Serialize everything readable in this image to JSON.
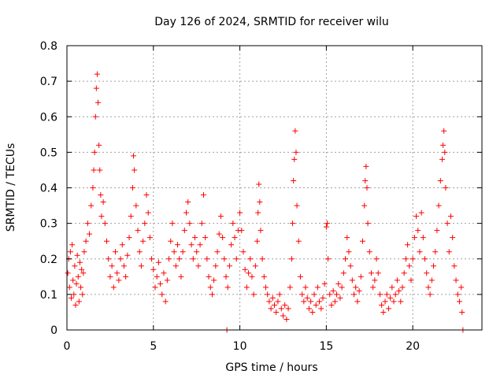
{
  "chart_data": {
    "type": "scatter",
    "title": "Day 126 of 2024, SRMTID for receiver wilu",
    "xlabel": "GPS time / hours",
    "ylabel": "SRMTID / TECUs",
    "xlim": [
      0,
      24
    ],
    "ylim": [
      0,
      0.8
    ],
    "xticks": [
      0,
      5,
      10,
      15,
      20
    ],
    "yticks": [
      0,
      0.1,
      0.2,
      0.3,
      0.4,
      0.5,
      0.6,
      0.7,
      0.8
    ],
    "xtick_labels": [
      "0",
      "5",
      "10",
      "15",
      "20"
    ],
    "ytick_labels": [
      "0",
      "0.1",
      "0.2",
      "0.3",
      "0.4",
      "0.5",
      "0.6",
      "0.7",
      "0.8"
    ],
    "grid": true,
    "marker": "+",
    "color": "#ff0000",
    "series": [
      {
        "name": "SRMTID",
        "points": [
          [
            0.05,
            0.16
          ],
          [
            0.1,
            0.2
          ],
          [
            0.15,
            0.12
          ],
          [
            0.2,
            0.22
          ],
          [
            0.25,
            0.09
          ],
          [
            0.3,
            0.24
          ],
          [
            0.35,
            0.14
          ],
          [
            0.4,
            0.1
          ],
          [
            0.45,
            0.18
          ],
          [
            0.5,
            0.07
          ],
          [
            0.55,
            0.13
          ],
          [
            0.6,
            0.21
          ],
          [
            0.65,
            0.15
          ],
          [
            0.7,
            0.08
          ],
          [
            0.75,
            0.19
          ],
          [
            0.8,
            0.12
          ],
          [
            0.85,
            0.17
          ],
          [
            0.9,
            0.1
          ],
          [
            0.95,
            0.16
          ],
          [
            1.0,
            0.22
          ],
          [
            1.1,
            0.25
          ],
          [
            1.2,
            0.3
          ],
          [
            1.3,
            0.27
          ],
          [
            1.4,
            0.35
          ],
          [
            1.5,
            0.4
          ],
          [
            1.55,
            0.45
          ],
          [
            1.6,
            0.5
          ],
          [
            1.65,
            0.6
          ],
          [
            1.7,
            0.68
          ],
          [
            1.75,
            0.72
          ],
          [
            1.8,
            0.64
          ],
          [
            1.85,
            0.52
          ],
          [
            1.9,
            0.45
          ],
          [
            1.95,
            0.38
          ],
          [
            2.0,
            0.32
          ],
          [
            2.1,
            0.36
          ],
          [
            2.2,
            0.3
          ],
          [
            2.3,
            0.25
          ],
          [
            2.4,
            0.2
          ],
          [
            2.5,
            0.15
          ],
          [
            2.6,
            0.18
          ],
          [
            2.7,
            0.12
          ],
          [
            2.8,
            0.22
          ],
          [
            2.9,
            0.16
          ],
          [
            3.0,
            0.14
          ],
          [
            3.1,
            0.2
          ],
          [
            3.2,
            0.24
          ],
          [
            3.3,
            0.18
          ],
          [
            3.4,
            0.15
          ],
          [
            3.5,
            0.21
          ],
          [
            3.6,
            0.26
          ],
          [
            3.7,
            0.32
          ],
          [
            3.8,
            0.4
          ],
          [
            3.85,
            0.49
          ],
          [
            3.9,
            0.45
          ],
          [
            4.0,
            0.35
          ],
          [
            4.1,
            0.28
          ],
          [
            4.2,
            0.22
          ],
          [
            4.3,
            0.18
          ],
          [
            4.4,
            0.25
          ],
          [
            4.5,
            0.3
          ],
          [
            4.6,
            0.38
          ],
          [
            4.7,
            0.33
          ],
          [
            4.8,
            0.26
          ],
          [
            4.9,
            0.2
          ],
          [
            5.0,
            0.17
          ],
          [
            5.1,
            0.12
          ],
          [
            5.2,
            0.15
          ],
          [
            5.3,
            0.19
          ],
          [
            5.4,
            0.13
          ],
          [
            5.5,
            0.1
          ],
          [
            5.6,
            0.16
          ],
          [
            5.7,
            0.08
          ],
          [
            5.8,
            0.14
          ],
          [
            5.9,
            0.2
          ],
          [
            6.0,
            0.25
          ],
          [
            6.1,
            0.3
          ],
          [
            6.2,
            0.22
          ],
          [
            6.3,
            0.18
          ],
          [
            6.4,
            0.24
          ],
          [
            6.5,
            0.2
          ],
          [
            6.6,
            0.15
          ],
          [
            6.7,
            0.22
          ],
          [
            6.8,
            0.28
          ],
          [
            6.9,
            0.33
          ],
          [
            7.0,
            0.36
          ],
          [
            7.1,
            0.3
          ],
          [
            7.2,
            0.24
          ],
          [
            7.3,
            0.2
          ],
          [
            7.4,
            0.26
          ],
          [
            7.5,
            0.22
          ],
          [
            7.6,
            0.18
          ],
          [
            7.7,
            0.24
          ],
          [
            7.8,
            0.3
          ],
          [
            7.9,
            0.38
          ],
          [
            8.0,
            0.26
          ],
          [
            8.1,
            0.2
          ],
          [
            8.2,
            0.15
          ],
          [
            8.3,
            0.12
          ],
          [
            8.4,
            0.1
          ],
          [
            8.5,
            0.14
          ],
          [
            8.6,
            0.18
          ],
          [
            8.7,
            0.22
          ],
          [
            8.8,
            0.27
          ],
          [
            8.9,
            0.32
          ],
          [
            9.0,
            0.26
          ],
          [
            9.1,
            0.2
          ],
          [
            9.2,
            0.15
          ],
          [
            9.25,
            0.0
          ],
          [
            9.3,
            0.12
          ],
          [
            9.4,
            0.18
          ],
          [
            9.5,
            0.24
          ],
          [
            9.6,
            0.3
          ],
          [
            9.7,
            0.26
          ],
          [
            9.8,
            0.2
          ],
          [
            9.9,
            0.28
          ],
          [
            10.0,
            0.33
          ],
          [
            10.1,
            0.28
          ],
          [
            10.2,
            0.22
          ],
          [
            10.3,
            0.17
          ],
          [
            10.4,
            0.12
          ],
          [
            10.5,
            0.16
          ],
          [
            10.6,
            0.2
          ],
          [
            10.7,
            0.15
          ],
          [
            10.8,
            0.1
          ],
          [
            10.9,
            0.18
          ],
          [
            11.0,
            0.25
          ],
          [
            11.05,
            0.33
          ],
          [
            11.1,
            0.41
          ],
          [
            11.15,
            0.36
          ],
          [
            11.2,
            0.28
          ],
          [
            11.3,
            0.2
          ],
          [
            11.4,
            0.15
          ],
          [
            11.5,
            0.12
          ],
          [
            11.6,
            0.1
          ],
          [
            11.7,
            0.08
          ],
          [
            11.8,
            0.06
          ],
          [
            11.9,
            0.09
          ],
          [
            12.0,
            0.07
          ],
          [
            12.1,
            0.05
          ],
          [
            12.2,
            0.08
          ],
          [
            12.3,
            0.1
          ],
          [
            12.4,
            0.06
          ],
          [
            12.5,
            0.04
          ],
          [
            12.6,
            0.07
          ],
          [
            12.7,
            0.03
          ],
          [
            12.8,
            0.06
          ],
          [
            12.9,
            0.12
          ],
          [
            13.0,
            0.2
          ],
          [
            13.05,
            0.3
          ],
          [
            13.1,
            0.42
          ],
          [
            13.15,
            0.48
          ],
          [
            13.2,
            0.56
          ],
          [
            13.25,
            0.5
          ],
          [
            13.3,
            0.35
          ],
          [
            13.4,
            0.25
          ],
          [
            13.5,
            0.15
          ],
          [
            13.6,
            0.1
          ],
          [
            13.7,
            0.08
          ],
          [
            13.8,
            0.12
          ],
          [
            13.9,
            0.09
          ],
          [
            14.0,
            0.06
          ],
          [
            14.1,
            0.08
          ],
          [
            14.2,
            0.05
          ],
          [
            14.3,
            0.1
          ],
          [
            14.4,
            0.07
          ],
          [
            14.5,
            0.12
          ],
          [
            14.6,
            0.08
          ],
          [
            14.7,
            0.06
          ],
          [
            14.8,
            0.09
          ],
          [
            14.9,
            0.13
          ],
          [
            15.0,
            0.29
          ],
          [
            15.05,
            0.3
          ],
          [
            15.1,
            0.2
          ],
          [
            15.2,
            0.1
          ],
          [
            15.3,
            0.07
          ],
          [
            15.4,
            0.11
          ],
          [
            15.5,
            0.08
          ],
          [
            15.6,
            0.1
          ],
          [
            15.7,
            0.13
          ],
          [
            15.8,
            0.09
          ],
          [
            15.9,
            0.12
          ],
          [
            16.0,
            0.16
          ],
          [
            16.1,
            0.2
          ],
          [
            16.2,
            0.26
          ],
          [
            16.3,
            0.22
          ],
          [
            16.4,
            0.18
          ],
          [
            16.5,
            0.14
          ],
          [
            16.6,
            0.1
          ],
          [
            16.7,
            0.12
          ],
          [
            16.8,
            0.08
          ],
          [
            16.9,
            0.11
          ],
          [
            17.0,
            0.15
          ],
          [
            17.1,
            0.25
          ],
          [
            17.2,
            0.35
          ],
          [
            17.25,
            0.42
          ],
          [
            17.3,
            0.46
          ],
          [
            17.35,
            0.4
          ],
          [
            17.4,
            0.3
          ],
          [
            17.5,
            0.22
          ],
          [
            17.6,
            0.16
          ],
          [
            17.7,
            0.12
          ],
          [
            17.8,
            0.14
          ],
          [
            17.9,
            0.2
          ],
          [
            18.0,
            0.16
          ],
          [
            18.1,
            0.1
          ],
          [
            18.2,
            0.07
          ],
          [
            18.3,
            0.05
          ],
          [
            18.4,
            0.08
          ],
          [
            18.5,
            0.1
          ],
          [
            18.6,
            0.06
          ],
          [
            18.7,
            0.09
          ],
          [
            18.8,
            0.12
          ],
          [
            18.9,
            0.08
          ],
          [
            19.0,
            0.1
          ],
          [
            19.1,
            0.14
          ],
          [
            19.2,
            0.11
          ],
          [
            19.3,
            0.08
          ],
          [
            19.4,
            0.12
          ],
          [
            19.5,
            0.16
          ],
          [
            19.6,
            0.2
          ],
          [
            19.7,
            0.24
          ],
          [
            19.8,
            0.18
          ],
          [
            19.9,
            0.14
          ],
          [
            20.0,
            0.2
          ],
          [
            20.1,
            0.26
          ],
          [
            20.2,
            0.32
          ],
          [
            20.3,
            0.28
          ],
          [
            20.4,
            0.22
          ],
          [
            20.5,
            0.33
          ],
          [
            20.6,
            0.26
          ],
          [
            20.7,
            0.2
          ],
          [
            20.8,
            0.16
          ],
          [
            20.9,
            0.12
          ],
          [
            21.0,
            0.1
          ],
          [
            21.1,
            0.14
          ],
          [
            21.2,
            0.18
          ],
          [
            21.3,
            0.22
          ],
          [
            21.4,
            0.28
          ],
          [
            21.5,
            0.35
          ],
          [
            21.6,
            0.42
          ],
          [
            21.7,
            0.48
          ],
          [
            21.75,
            0.52
          ],
          [
            21.8,
            0.56
          ],
          [
            21.85,
            0.5
          ],
          [
            21.9,
            0.4
          ],
          [
            22.0,
            0.3
          ],
          [
            22.1,
            0.22
          ],
          [
            22.2,
            0.32
          ],
          [
            22.3,
            0.26
          ],
          [
            22.4,
            0.18
          ],
          [
            22.5,
            0.14
          ],
          [
            22.6,
            0.1
          ],
          [
            22.7,
            0.08
          ],
          [
            22.8,
            0.12
          ],
          [
            22.85,
            0.05
          ],
          [
            22.9,
            0.0
          ]
        ]
      }
    ]
  }
}
